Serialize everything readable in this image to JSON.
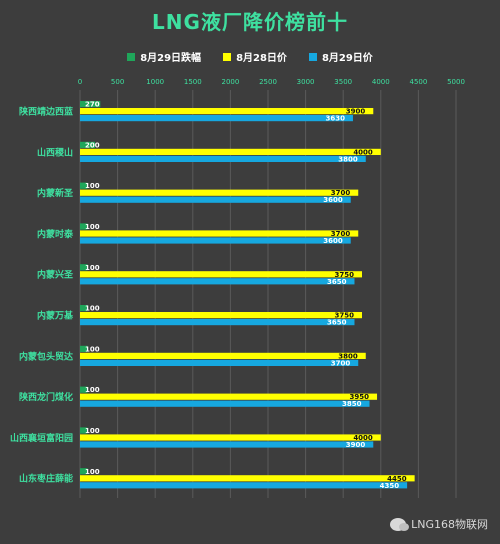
{
  "chart_data": {
    "type": "bar",
    "orientation": "horizontal",
    "title": "LNG液厂降价榜前十",
    "categories": [
      "陕西靖边西蓝",
      "山西稷山",
      "内蒙新圣",
      "内蒙时泰",
      "内蒙兴圣",
      "内蒙万基",
      "内蒙包头贸达",
      "陕西龙门煤化",
      "山西襄垣富阳园",
      "山东枣庄薛能"
    ],
    "series": [
      {
        "name": "8月29日跌幅",
        "color": "#1fa65a",
        "values": [
          270,
          200,
          100,
          100,
          100,
          100,
          100,
          100,
          100,
          100
        ]
      },
      {
        "name": "8月28日价",
        "color": "#ffff00",
        "values": [
          3900,
          4000,
          3700,
          3700,
          3750,
          3750,
          3800,
          3950,
          4000,
          4450
        ]
      },
      {
        "name": "8月29日价",
        "color": "#16a8e0",
        "values": [
          3630,
          3800,
          3600,
          3600,
          3650,
          3650,
          3700,
          3850,
          3900,
          4350
        ]
      }
    ],
    "x_ticks": [
      "0",
      "500",
      "1000",
      "1500",
      "2000",
      "2500",
      "3000",
      "3500",
      "4000",
      "4500",
      "5000"
    ],
    "xlim": [
      0,
      5000
    ],
    "grid": true,
    "legend_position": "top"
  },
  "colors": {
    "title": "#3ee0a0",
    "category_label": "#3ee0a0",
    "tick_label": "#3ee0a0",
    "background": "#3d3d3d",
    "grid": "#5a5a5a"
  },
  "watermark": {
    "text": "LNG168物联网",
    "icon": "wechat-icon"
  }
}
